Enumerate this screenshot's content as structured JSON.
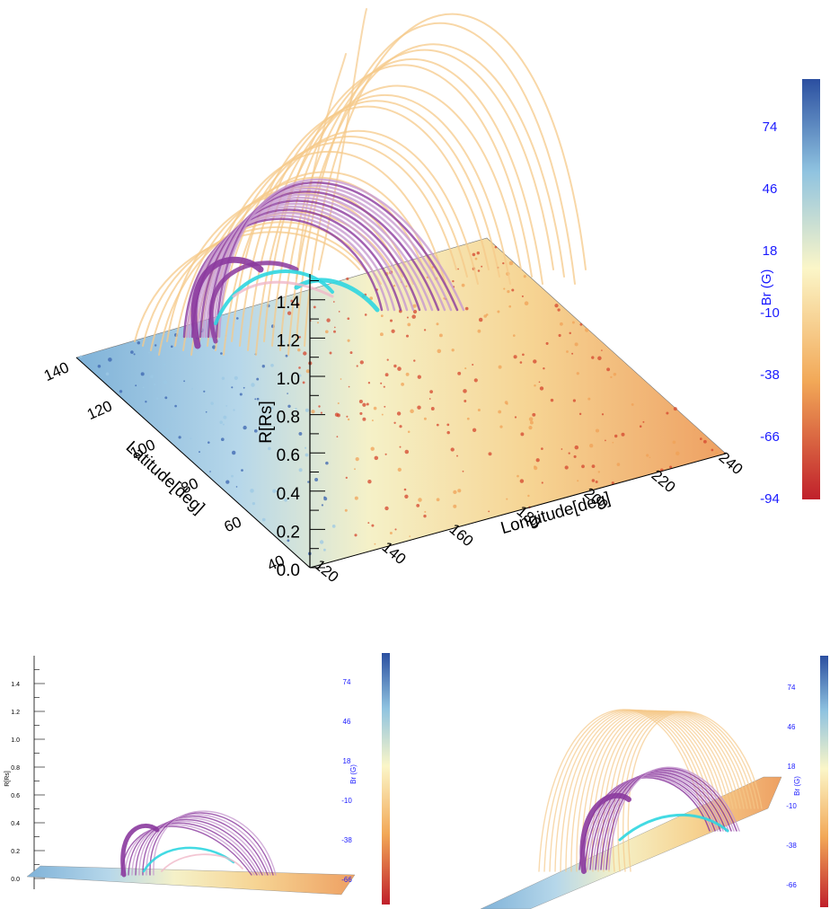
{
  "colorbar": {
    "title": "Br (G)",
    "ticks": [
      "74",
      "46",
      "18",
      "-10",
      "-38",
      "-66",
      "-94"
    ],
    "colors": {
      "positive_max": "#2b4fa0",
      "mid_positive": "#8fc3e0",
      "neutral": "#fbf6c8",
      "mid_negative": "#f2a857",
      "negative_max": "#c0202b",
      "label_color": "#1a1aff"
    }
  },
  "main_view": {
    "longitude_title": "Longitude[deg]",
    "longitude_ticks": [
      "120",
      "140",
      "160",
      "180",
      "200",
      "220",
      "240"
    ],
    "latitude_title": "Latitude[deg]",
    "latitude_ticks": [
      "40",
      "60",
      "80",
      "100",
      "120",
      "140"
    ],
    "radius_title": "R[Rs]",
    "radius_ticks": [
      "0.0",
      "0.2",
      "0.4",
      "0.6",
      "0.8",
      "1.0",
      "1.2",
      "1.4"
    ]
  },
  "side_view": {
    "radius_title": "R[Rs]",
    "radius_ticks": [
      "0.0",
      "0.2",
      "0.4",
      "0.6",
      "0.8",
      "1.0",
      "1.2",
      "1.4"
    ]
  },
  "line_colors": {
    "open": "#f5c98a",
    "purple": "#8b3a9e",
    "light_purple": "#c79ad0",
    "cyan": "#2fd6e0",
    "pink": "#f0b8c8"
  }
}
